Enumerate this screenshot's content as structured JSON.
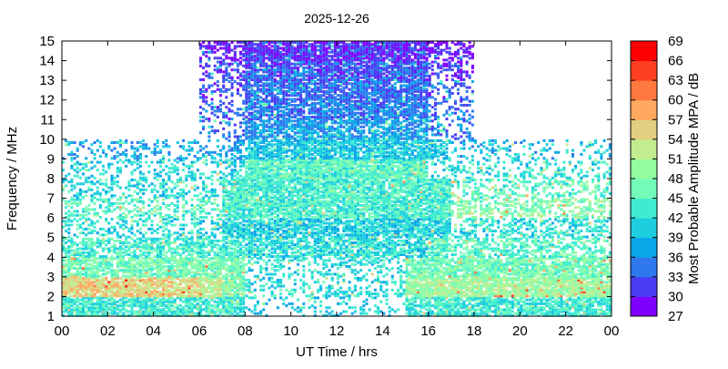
{
  "chart_data": {
    "type": "heatmap",
    "title": "2025-12-26",
    "xlabel": "UT Time / hrs",
    "ylabel": "Frequency / MHz",
    "xlim": [
      0,
      24
    ],
    "ylim": [
      1,
      15
    ],
    "x_tick_labels": [
      "00",
      "02",
      "04",
      "06",
      "08",
      "10",
      "12",
      "14",
      "16",
      "18",
      "20",
      "22",
      "00"
    ],
    "y_tick_labels": [
      "1",
      "2",
      "3",
      "4",
      "5",
      "6",
      "7",
      "8",
      "9",
      "10",
      "11",
      "12",
      "13",
      "14",
      "15"
    ],
    "grid": false,
    "colorbar": {
      "label": "Most Probable Amplitude MPA / dB",
      "range": [
        27,
        69
      ],
      "tick_labels": [
        "27",
        "30",
        "33",
        "36",
        "39",
        "42",
        "45",
        "48",
        "51",
        "54",
        "57",
        "60",
        "63",
        "66",
        "69"
      ],
      "colors": [
        "#8000ff",
        "#4b3cf5",
        "#2f78ee",
        "#0aa6e8",
        "#1ccede",
        "#40ecd0",
        "#72fcb8",
        "#94fca0",
        "#c2ec90",
        "#e0d080",
        "#ffa860",
        "#ff7840",
        "#ff4020",
        "#ff0000"
      ]
    },
    "grid_description_units": {
      "x": "hour (1 h bins, 0-23)",
      "y": "frequency bin lower edge MHz (1-14)"
    },
    "hours": [
      0,
      1,
      2,
      3,
      4,
      5,
      6,
      7,
      8,
      9,
      10,
      11,
      12,
      13,
      14,
      15,
      16,
      17,
      18,
      19,
      20,
      21,
      22,
      23
    ],
    "freq_bins": [
      1,
      2,
      3,
      4,
      5,
      6,
      7,
      8,
      9,
      10,
      11,
      12,
      13,
      14
    ],
    "values_db": [
      [
        43,
        43,
        43,
        43,
        43,
        43,
        43,
        43,
        40,
        40,
        40,
        40,
        40,
        40,
        40,
        43,
        43,
        43,
        43,
        43,
        43,
        43,
        43,
        43
      ],
      [
        55,
        55,
        55,
        55,
        55,
        55,
        52,
        48,
        42,
        42,
        42,
        42,
        42,
        42,
        42,
        50,
        50,
        50,
        50,
        50,
        50,
        50,
        50,
        50
      ],
      [
        47,
        47,
        47,
        47,
        47,
        47,
        47,
        47,
        42,
        42,
        42,
        42,
        42,
        42,
        42,
        47,
        47,
        47,
        47,
        47,
        47,
        47,
        47,
        47
      ],
      [
        44,
        44,
        44,
        44,
        44,
        44,
        44,
        44,
        42,
        42,
        42,
        42,
        42,
        42,
        42,
        42,
        45,
        45,
        45,
        45,
        45,
        45,
        45,
        45
      ],
      [
        42,
        42,
        42,
        42,
        42,
        42,
        42,
        41,
        41,
        41,
        41,
        41,
        41,
        41,
        41,
        41,
        41,
        42,
        42,
        42,
        42,
        42,
        42,
        42
      ],
      [
        45,
        45,
        45,
        45,
        45,
        45,
        45,
        44,
        44,
        44,
        44,
        44,
        44,
        44,
        44,
        44,
        44,
        48,
        48,
        48,
        48,
        48,
        48,
        48
      ],
      [
        42,
        42,
        42,
        42,
        42,
        42,
        42,
        44,
        44,
        44,
        44,
        44,
        44,
        44,
        44,
        44,
        44,
        45,
        45,
        45,
        45,
        45,
        45,
        45
      ],
      [
        41,
        41,
        41,
        41,
        41,
        41,
        41,
        41,
        45,
        45,
        45,
        45,
        45,
        45,
        45,
        45,
        42,
        42,
        42,
        42,
        42,
        42,
        42,
        42
      ],
      [
        38,
        38,
        38,
        38,
        38,
        38,
        38,
        38,
        40,
        40,
        40,
        40,
        40,
        40,
        40,
        40,
        40,
        39,
        39,
        39,
        39,
        39,
        39,
        39
      ],
      [
        null,
        null,
        null,
        null,
        null,
        null,
        35,
        35,
        37,
        37,
        37,
        37,
        37,
        37,
        37,
        37,
        35,
        35,
        null,
        null,
        null,
        null,
        null,
        null
      ],
      [
        null,
        null,
        null,
        null,
        null,
        null,
        33,
        33,
        35,
        35,
        35,
        35,
        35,
        35,
        35,
        35,
        34,
        34,
        null,
        null,
        null,
        null,
        null,
        null
      ],
      [
        null,
        null,
        null,
        null,
        null,
        null,
        32,
        32,
        34,
        34,
        34,
        34,
        34,
        34,
        34,
        34,
        33,
        33,
        null,
        null,
        null,
        null,
        null,
        null
      ],
      [
        null,
        null,
        null,
        null,
        null,
        null,
        31,
        31,
        33,
        33,
        33,
        33,
        33,
        33,
        33,
        33,
        31,
        31,
        null,
        null,
        null,
        null,
        null,
        null
      ],
      [
        null,
        null,
        null,
        null,
        null,
        null,
        29,
        29,
        31,
        31,
        31,
        31,
        31,
        31,
        31,
        31,
        29,
        29,
        null,
        null,
        null,
        null,
        null,
        null
      ]
    ],
    "coverage": [
      [
        0.8,
        0.8,
        0.8,
        0.8,
        0.8,
        0.8,
        0.8,
        0.8,
        0.2,
        0.2,
        0.2,
        0.2,
        0.2,
        0.2,
        0.2,
        0.8,
        0.8,
        0.8,
        0.8,
        0.8,
        0.8,
        0.8,
        0.8,
        0.8
      ],
      [
        0.9,
        0.9,
        0.9,
        0.9,
        0.9,
        0.9,
        0.9,
        0.9,
        0.3,
        0.3,
        0.3,
        0.3,
        0.3,
        0.3,
        0.3,
        0.9,
        0.9,
        0.9,
        0.9,
        0.9,
        0.9,
        0.9,
        0.9,
        0.9
      ],
      [
        0.8,
        0.8,
        0.8,
        0.8,
        0.8,
        0.8,
        0.8,
        0.8,
        0.3,
        0.3,
        0.3,
        0.3,
        0.3,
        0.3,
        0.3,
        0.8,
        0.8,
        0.8,
        0.8,
        0.8,
        0.8,
        0.8,
        0.8,
        0.8
      ],
      [
        0.6,
        0.6,
        0.6,
        0.6,
        0.6,
        0.6,
        0.7,
        0.7,
        0.7,
        0.7,
        0.7,
        0.7,
        0.7,
        0.7,
        0.7,
        0.7,
        0.7,
        0.5,
        0.5,
        0.5,
        0.5,
        0.5,
        0.5,
        0.5
      ],
      [
        0.35,
        0.35,
        0.35,
        0.35,
        0.35,
        0.35,
        0.35,
        0.8,
        0.8,
        0.8,
        0.8,
        0.8,
        0.8,
        0.8,
        0.8,
        0.8,
        0.8,
        0.4,
        0.4,
        0.4,
        0.4,
        0.4,
        0.4,
        0.4
      ],
      [
        0.4,
        0.4,
        0.4,
        0.4,
        0.4,
        0.4,
        0.4,
        0.85,
        0.85,
        0.85,
        0.85,
        0.85,
        0.85,
        0.85,
        0.85,
        0.85,
        0.85,
        0.45,
        0.45,
        0.45,
        0.45,
        0.45,
        0.45,
        0.45
      ],
      [
        0.3,
        0.3,
        0.3,
        0.3,
        0.3,
        0.3,
        0.3,
        0.85,
        0.85,
        0.85,
        0.85,
        0.85,
        0.85,
        0.85,
        0.85,
        0.85,
        0.85,
        0.35,
        0.35,
        0.35,
        0.35,
        0.35,
        0.35,
        0.35
      ],
      [
        0.3,
        0.3,
        0.3,
        0.3,
        0.3,
        0.3,
        0.3,
        0.5,
        0.9,
        0.9,
        0.9,
        0.9,
        0.9,
        0.9,
        0.9,
        0.9,
        0.3,
        0.3,
        0.3,
        0.3,
        0.3,
        0.3,
        0.3,
        0.3
      ],
      [
        0.25,
        0.25,
        0.25,
        0.25,
        0.25,
        0.25,
        0.25,
        0.4,
        0.8,
        0.8,
        0.8,
        0.8,
        0.8,
        0.8,
        0.8,
        0.8,
        0.5,
        0.2,
        0.2,
        0.2,
        0.2,
        0.2,
        0.2,
        0.2
      ],
      [
        0,
        0,
        0,
        0,
        0,
        0,
        0.2,
        0.2,
        0.8,
        0.8,
        0.8,
        0.8,
        0.8,
        0.8,
        0.8,
        0.8,
        0.3,
        0.3,
        0,
        0,
        0,
        0,
        0,
        0
      ],
      [
        0,
        0,
        0,
        0,
        0,
        0,
        0.3,
        0.3,
        0.8,
        0.8,
        0.8,
        0.8,
        0.8,
        0.8,
        0.8,
        0.8,
        0.3,
        0.3,
        0,
        0,
        0,
        0,
        0,
        0
      ],
      [
        0,
        0,
        0,
        0,
        0,
        0,
        0.3,
        0.3,
        0.8,
        0.8,
        0.8,
        0.8,
        0.8,
        0.8,
        0.8,
        0.8,
        0.3,
        0.3,
        0,
        0,
        0,
        0,
        0,
        0
      ],
      [
        0,
        0,
        0,
        0,
        0,
        0,
        0.4,
        0.4,
        0.85,
        0.85,
        0.85,
        0.85,
        0.85,
        0.85,
        0.85,
        0.85,
        0.4,
        0.4,
        0,
        0,
        0,
        0,
        0,
        0
      ],
      [
        0,
        0,
        0,
        0,
        0,
        0,
        0.5,
        0.5,
        0.9,
        0.9,
        0.9,
        0.9,
        0.9,
        0.9,
        0.9,
        0.9,
        0.5,
        0.5,
        0,
        0,
        0,
        0,
        0,
        0
      ]
    ]
  }
}
